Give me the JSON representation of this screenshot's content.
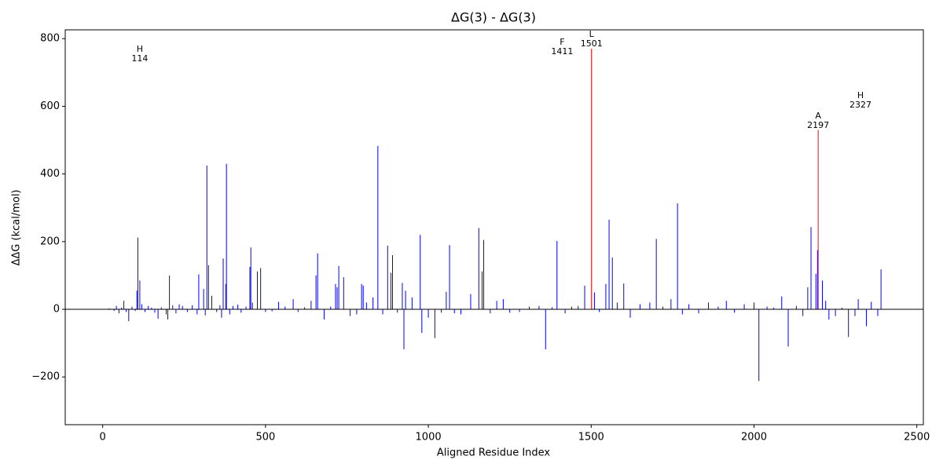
{
  "chart_data": {
    "type": "bar",
    "title": "ΔG(3) - ΔG(3)",
    "xlabel": "Aligned Residue Index",
    "ylabel": "ΔΔG (kcal/mol)",
    "xlim": [
      -115,
      2520
    ],
    "ylim": [
      -341,
      826
    ],
    "xticks": [
      0,
      500,
      1000,
      1500,
      2000,
      2500
    ],
    "yticks": [
      {
        "value": -200,
        "label": "−200"
      },
      0,
      200,
      400,
      600,
      800
    ],
    "hline": 0,
    "series": [
      {
        "color": "#0000ff",
        "x": [
          20,
          35,
          42,
          50,
          58,
          65,
          72,
          80,
          90,
          100,
          105,
          108,
          114,
          120,
          130,
          140,
          150,
          160,
          170,
          180,
          195,
          200,
          205,
          215,
          225,
          235,
          245,
          260,
          275,
          290,
          295,
          310,
          315,
          320,
          325,
          335,
          350,
          360,
          365,
          370,
          378,
          380,
          390,
          400,
          415,
          425,
          440,
          452,
          455,
          460,
          475,
          485,
          500,
          520,
          540,
          560,
          585,
          600,
          620,
          640,
          655,
          660,
          680,
          700,
          715,
          720,
          725,
          740,
          760,
          780,
          795,
          800,
          810,
          830,
          845,
          860,
          875,
          885,
          890,
          905,
          920,
          925,
          930,
          950,
          975,
          980,
          1000,
          1020,
          1040,
          1055,
          1065,
          1080,
          1100,
          1130,
          1155,
          1165,
          1170,
          1190,
          1210,
          1230,
          1250,
          1280,
          1310,
          1340,
          1360,
          1380,
          1395,
          1420,
          1440,
          1460,
          1480,
          1510,
          1525,
          1545,
          1555,
          1565,
          1580,
          1600,
          1620,
          1650,
          1680,
          1700,
          1720,
          1745,
          1765,
          1780,
          1800,
          1830,
          1860,
          1890,
          1915,
          1940,
          1970,
          2000,
          2015,
          2040,
          2060,
          2085,
          2105,
          2130,
          2150,
          2165,
          2175,
          2190,
          2195,
          2210,
          2220,
          2230,
          2250,
          2270,
          2290,
          2310,
          2320,
          2345,
          2360,
          2380,
          2390
        ],
        "values": [
          3,
          -5,
          10,
          -12,
          5,
          25,
          -8,
          -35,
          8,
          -5,
          55,
          212,
          85,
          15,
          -8,
          10,
          5,
          -10,
          -28,
          6,
          -15,
          -30,
          100,
          12,
          -12,
          15,
          10,
          -8,
          12,
          -15,
          103,
          60,
          -18,
          425,
          130,
          40,
          -8,
          12,
          -25,
          150,
          75,
          430,
          -15,
          10,
          14,
          -10,
          8,
          125,
          183,
          20,
          112,
          122,
          -8,
          -6,
          22,
          8,
          30,
          -8,
          6,
          25,
          100,
          165,
          -30,
          8,
          75,
          65,
          128,
          95,
          -20,
          -15,
          75,
          70,
          20,
          35,
          483,
          -15,
          188,
          108,
          160,
          -10,
          78,
          -118,
          55,
          35,
          220,
          -70,
          -25,
          -85,
          -10,
          52,
          190,
          -12,
          -15,
          45,
          240,
          112,
          205,
          -12,
          25,
          30,
          -10,
          -8,
          8,
          10,
          -118,
          6,
          202,
          -12,
          8,
          10,
          70,
          50,
          -8,
          75,
          265,
          153,
          20,
          76,
          -25,
          15,
          20,
          208,
          8,
          30,
          313,
          -15,
          15,
          -12,
          20,
          8,
          25,
          -10,
          15,
          20,
          -212,
          8,
          5,
          38,
          -110,
          10,
          -20,
          65,
          243,
          105,
          175,
          85,
          25,
          -30,
          -20,
          5,
          -82,
          -20,
          30,
          -50,
          22,
          -20,
          118
        ]
      },
      {
        "color": "#ff0000",
        "x": [
          1501,
          2197
        ],
        "values": [
          770,
          530
        ]
      }
    ],
    "annotations": [
      {
        "residue": "H",
        "index": 114,
        "y": 754
      },
      {
        "residue": "F",
        "index": 1411,
        "y": 775
      },
      {
        "residue": "L",
        "index": 1501,
        "y": 798
      },
      {
        "residue": "A",
        "index": 2197,
        "y": 557
      },
      {
        "residue": "H",
        "index": 2327,
        "y": 617
      }
    ]
  }
}
